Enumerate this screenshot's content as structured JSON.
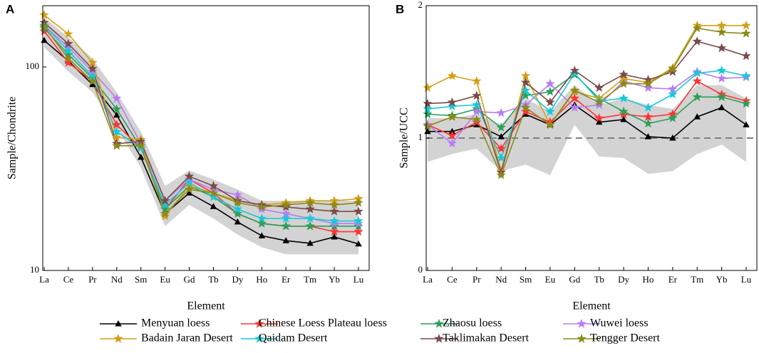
{
  "chart_data": [
    {
      "type": "line",
      "panel": "A",
      "yscale": "log",
      "ylim": [
        10,
        200
      ],
      "yticks": [
        10,
        100
      ],
      "y_label": "Sample/Chondrite",
      "x_label": "Element",
      "categories": [
        "La",
        "Ce",
        "Pr",
        "Nd",
        "Sm",
        "Eu",
        "Gd",
        "Tb",
        "Dy",
        "Ho",
        "Er",
        "Tm",
        "Yb",
        "Lu"
      ],
      "range_band": {
        "color": "#d3d3d3",
        "lower": [
          125,
          95,
          75,
          50,
          32,
          16.5,
          21,
          18,
          15,
          13,
          12,
          12,
          12,
          12
        ],
        "upper": [
          175,
          140,
          110,
          75,
          48,
          26,
          31,
          28,
          25,
          22,
          22,
          22,
          22,
          22
        ]
      },
      "series": [
        {
          "name": "Menyuan loess",
          "color": "#000000",
          "marker": "triangle",
          "values": [
            135,
            107,
            82,
            58,
            36,
            19,
            24,
            20.6,
            17.3,
            14.8,
            14,
            13.6,
            14.6,
            13.5
          ]
        },
        {
          "name": "Chinese Loess Plateau loess",
          "color": "#ff3333",
          "marker": "star",
          "values": [
            150,
            105,
            85,
            52,
            40,
            20,
            28,
            24,
            19,
            17,
            16.5,
            16.5,
            15.5,
            15.5
          ]
        },
        {
          "name": "Zhaosu loess",
          "color": "#2ca05a",
          "marker": "star",
          "values": [
            155,
            115,
            88,
            62,
            40,
            20,
            26,
            23,
            19,
            17,
            16.5,
            16.5,
            16.5,
            16.5
          ]
        },
        {
          "name": "Wuwei loess",
          "color": "#b77cf5",
          "marker": "star",
          "values": [
            160,
            125,
            95,
            70,
            42,
            22,
            28,
            25,
            23.5,
            20,
            19,
            18,
            17,
            17
          ]
        },
        {
          "name": "Badain Jaran Desert",
          "color": "#d4a017",
          "marker": "star",
          "values": [
            180,
            145,
            105,
            45,
            44,
            18.5,
            26,
            24,
            22,
            21,
            21.5,
            22,
            22,
            22.5
          ]
        },
        {
          "name": "Qaidam Desert",
          "color": "#17c9d8",
          "marker": "star",
          "values": [
            160,
            120,
            90,
            48,
            40,
            21,
            27,
            23,
            20,
            18,
            18,
            18,
            17.5,
            17.5
          ]
        },
        {
          "name": "Taklimakan Desert",
          "color": "#7b4a4a",
          "marker": "star",
          "values": [
            165,
            130,
            98,
            42,
            43,
            22,
            29,
            26,
            22,
            21,
            20.5,
            20,
            19.5,
            19.5
          ]
        },
        {
          "name": "Tengger Desert",
          "color": "#8a8a1a",
          "marker": "star",
          "values": [
            158,
            110,
            85,
            41,
            41,
            19,
            25,
            24,
            21.5,
            20.5,
            21,
            21.5,
            21,
            21.5
          ]
        }
      ]
    },
    {
      "type": "line",
      "panel": "B",
      "yscale": "linear",
      "ylim": [
        0,
        2
      ],
      "yticks": [
        0,
        1,
        2
      ],
      "y_label": "Sample/UCC",
      "x_label": "Element",
      "reference_line": {
        "value": 1,
        "color": "#808080",
        "style": "dashed"
      },
      "categories": [
        "La",
        "Ce",
        "Pr",
        "Nd",
        "Sm",
        "Eu",
        "Gd",
        "Tb",
        "Dy",
        "Ho",
        "Er",
        "Tm",
        "Yb",
        "Lu"
      ],
      "range_band": {
        "color": "#d3d3d3",
        "lower": [
          0.82,
          0.88,
          0.92,
          0.75,
          0.8,
          0.72,
          1.1,
          0.86,
          0.85,
          0.73,
          0.75,
          0.88,
          0.95,
          0.82
        ],
        "upper": [
          1.15,
          1.15,
          1.18,
          1.1,
          1.3,
          1.2,
          1.4,
          1.25,
          1.3,
          1.25,
          1.22,
          1.4,
          1.4,
          1.3
        ]
      },
      "series": [
        {
          "name": "Menyuan loess",
          "color": "#000000",
          "marker": "triangle",
          "values": [
            1.05,
            1.05,
            1.1,
            1.01,
            1.18,
            1.1,
            1.25,
            1.12,
            1.14,
            1.01,
            1,
            1.16,
            1.23,
            1.1
          ]
        },
        {
          "name": "Chinese Loess Plateau loess",
          "color": "#ff3333",
          "marker": "star",
          "values": [
            1.1,
            1.02,
            1.12,
            0.92,
            1.2,
            1.12,
            1.3,
            1.15,
            1.18,
            1.16,
            1.18,
            1.43,
            1.33,
            1.28
          ]
        },
        {
          "name": "Zhaosu loess",
          "color": "#2ca05a",
          "marker": "star",
          "values": [
            1.18,
            1.17,
            1.22,
            1.08,
            1.32,
            1.35,
            1.48,
            1.3,
            1.2,
            1.11,
            1.15,
            1.31,
            1.31,
            1.26
          ]
        },
        {
          "name": "Wuwei loess",
          "color": "#b77cf5",
          "marker": "star",
          "values": [
            1.1,
            0.96,
            1.2,
            1.19,
            1.25,
            1.41,
            1.23,
            1.25,
            1.43,
            1.38,
            1.37,
            1.5,
            1.45,
            1.46
          ]
        },
        {
          "name": "Badain Jaran Desert",
          "color": "#d4a017",
          "marker": "star",
          "values": [
            1.38,
            1.47,
            1.43,
            0.75,
            1.47,
            1.1,
            1.35,
            1.3,
            1.45,
            1.42,
            1.53,
            1.85,
            1.85,
            1.85
          ]
        },
        {
          "name": "Qaidam Desert",
          "color": "#17c9d8",
          "marker": "star",
          "values": [
            1.22,
            1.24,
            1.25,
            0.85,
            1.36,
            1.2,
            1.49,
            1.28,
            1.3,
            1.23,
            1.33,
            1.49,
            1.51,
            1.47
          ]
        },
        {
          "name": "Taklimakan Desert",
          "color": "#7b4a4a",
          "marker": "star",
          "values": [
            1.26,
            1.27,
            1.32,
            0.74,
            1.42,
            1.27,
            1.51,
            1.38,
            1.48,
            1.44,
            1.5,
            1.73,
            1.68,
            1.62
          ]
        },
        {
          "name": "Tengger Desert",
          "color": "#8a8a1a",
          "marker": "star",
          "values": [
            1.09,
            1.16,
            1.14,
            0.72,
            1.23,
            1.1,
            1.36,
            1.27,
            1.41,
            1.41,
            1.52,
            1.83,
            1.8,
            1.79
          ]
        }
      ]
    }
  ]
}
